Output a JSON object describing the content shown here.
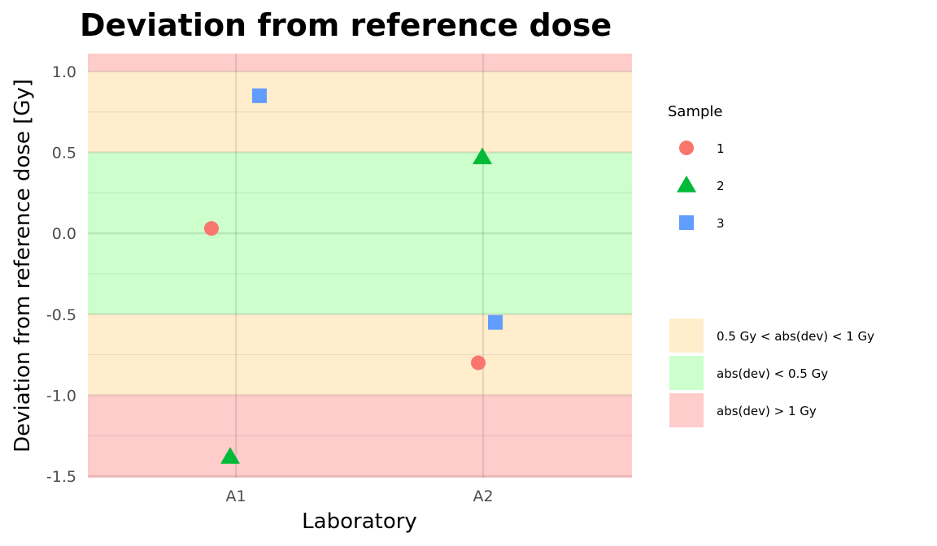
{
  "chart_data": {
    "type": "scatter",
    "title": "Deviation from reference dose",
    "xlabel": "Laboratory",
    "ylabel": "Deviation from reference dose [Gy]",
    "categories": [
      "A1",
      "A2"
    ],
    "ylim": [
      -1.51,
      1.11
    ],
    "yticks": [
      -1.5,
      -1.0,
      -0.5,
      0.0,
      0.5,
      1.0
    ],
    "ytick_labels": [
      "-1.5",
      "-1.0",
      "-0.5",
      "0.0",
      "0.5",
      "1.0"
    ],
    "grid": true,
    "legend_position": "right",
    "series": [
      {
        "name": "1",
        "shape": "circle",
        "color": "#F8766D",
        "points": [
          {
            "x": "A1",
            "y": 0.03
          },
          {
            "x": "A2",
            "y": -0.8
          }
        ]
      },
      {
        "name": "2",
        "shape": "triangle",
        "color": "#00BA38",
        "points": [
          {
            "x": "A1",
            "y": -1.38
          },
          {
            "x": "A2",
            "y": 0.47
          }
        ]
      },
      {
        "name": "3",
        "shape": "square",
        "color": "#619CFF",
        "points": [
          {
            "x": "A1",
            "y": 0.85
          },
          {
            "x": "A2",
            "y": -0.55
          }
        ]
      }
    ],
    "bands": [
      {
        "label": "abs(dev) > 1 Gy",
        "ranges": [
          [
            -1.51,
            -1.0
          ],
          [
            1.0,
            1.11
          ]
        ],
        "color": "#FFCCCC"
      },
      {
        "label": "0.5 Gy < abs(dev) < 1 Gy",
        "ranges": [
          [
            -1.0,
            -0.5
          ],
          [
            0.5,
            1.0
          ]
        ],
        "color": "#FFEDCC"
      },
      {
        "label": "abs(dev) < 0.5 Gy",
        "ranges": [
          [
            -0.5,
            0.5
          ]
        ],
        "color": "#CCFFCC"
      }
    ],
    "legend": {
      "shape_title": "Sample",
      "fill_entries": [
        "0.5 Gy < abs(dev) < 1 Gy",
        "abs(dev) < 0.5 Gy",
        "abs(dev) > 1 Gy"
      ]
    }
  }
}
